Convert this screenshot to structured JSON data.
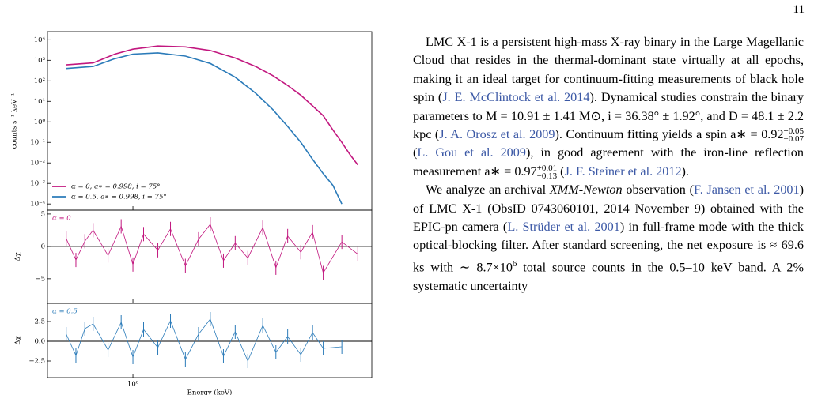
{
  "page_number": "11",
  "figure": {
    "spectrum": {
      "type": "line",
      "ylabel": "counts s⁻¹ keV⁻¹",
      "x": [
        0.55,
        0.7,
        0.85,
        1,
        1.25,
        1.6,
        2,
        2.5,
        3,
        3.5,
        4,
        4.5,
        5,
        5.5,
        6,
        6.5,
        7,
        7.5
      ],
      "series": [
        {
          "name": "α = 0, a∗ = 0.998, i = 75°",
          "color": "#c2177f",
          "values": [
            600,
            750,
            2000,
            3500,
            5000,
            4500,
            3000,
            1300,
            500,
            180,
            60,
            20,
            6,
            2,
            0.4,
            0.1,
            0.025,
            0.008
          ]
        },
        {
          "name": "α = 0.5, a∗ = 0.998, i = 75°",
          "color": "#2b7bb9",
          "values": [
            400,
            500,
            1200,
            2000,
            2300,
            1600,
            700,
            150,
            25,
            4,
            0.6,
            0.1,
            0.015,
            0.003,
            0.0008,
            0.0001,
            null,
            null
          ]
        }
      ],
      "xlim": [
        0.465,
        8.5
      ],
      "ylim": [
        5e-05,
        25000
      ],
      "log_x": true,
      "log_y": true,
      "legend": "lower left",
      "yticks": [
        {
          "value": 10000,
          "label": "10⁴"
        },
        {
          "value": 1000,
          "label": "10³"
        },
        {
          "value": 100,
          "label": "10²"
        },
        {
          "value": 10,
          "label": "10¹"
        },
        {
          "value": 1,
          "label": "10⁰"
        },
        {
          "value": 0.1,
          "label": "10⁻¹"
        },
        {
          "value": 0.01,
          "label": "10⁻²"
        },
        {
          "value": 0.001,
          "label": "10⁻³"
        },
        {
          "value": 0.0001,
          "label": "10⁻⁴"
        }
      ]
    },
    "residual_energies": [
      0.55,
      0.6,
      0.65,
      0.7,
      0.8,
      0.9,
      1,
      1.1,
      1.25,
      1.4,
      1.6,
      1.8,
      2,
      2.25,
      2.5,
      2.8,
      3.2,
      3.6,
      4,
      4.5,
      5,
      5.5,
      6.5,
      7.5
    ],
    "residuals": [
      {
        "type": "line",
        "label": "α = 0",
        "ylabel": "Δχ",
        "color": "#c2177f",
        "values": [
          1.2,
          -2.1,
          0.8,
          2.5,
          -1.4,
          3.1,
          -2.8,
          1.9,
          -0.6,
          2.7,
          -3.0,
          1.1,
          3.4,
          -2.2,
          0.5,
          -1.8,
          2.9,
          -3.3,
          1.6,
          -0.9,
          2.2,
          -4.1,
          0.7,
          -1.2
        ],
        "ylim": [
          -8.8,
          5.6
        ],
        "yticks": [
          5,
          0,
          {
            "value": -5,
            "label": "−5"
          }
        ]
      },
      {
        "type": "line",
        "label": "α = 0.5",
        "ylabel": "Δχ",
        "color": "#2b7bb9",
        "values": [
          0.9,
          -1.8,
          1.6,
          2.2,
          -1.1,
          2.4,
          -2.0,
          1.5,
          -0.8,
          2.6,
          -2.3,
          0.9,
          2.8,
          -1.9,
          1.2,
          -2.5,
          2.0,
          -1.4,
          0.6,
          -1.7,
          1.1,
          -0.9,
          -0.7,
          null
        ],
        "ylim": [
          -4.6,
          4.8
        ],
        "yticks": [
          2.5,
          {
            "value": 0,
            "label": "0.0"
          },
          {
            "value": -2.5,
            "label": "−2.5"
          }
        ]
      }
    ],
    "xlabel": "Energy (keV)",
    "xticks": [
      {
        "value": 1,
        "label": "10⁰"
      }
    ]
  },
  "text": {
    "paragraphs": [
      [
        {
          "text": "LMC X-1 is a persistent high-mass X-ray binary in the Large Magellanic Cloud that resides in the thermal-dominant state virtually at all epochs, making it an ideal target for continuum-fitting measurements of black hole spin ("
        },
        {
          "text": "J. E. McClintock et al. 2014",
          "cite": true
        },
        {
          "text": "). Dynamical studies constrain the binary parameters to M = 10.91 ± 1.41 M⊙, i = 36.38° ± 1.92°, and D = 48.1 ± 2.2 kpc ("
        },
        {
          "text": "J. A. Orosz et al. 2009",
          "cite": true
        },
        {
          "text": "). Continuum fitting yields a spin a∗ = 0.92",
          "sup": "+0.05",
          "sub": "−0.07"
        },
        {
          "text": " ("
        },
        {
          "text": "L. Gou et al. 2009",
          "cite": true
        },
        {
          "text": "), in good agreement with the iron-line reflection measurement a∗ = 0.97",
          "sup": "+0.01",
          "sub": "−0.13"
        },
        {
          "text": " ("
        },
        {
          "text": "J. F. Steiner et al. 2012",
          "cite": true
        },
        {
          "text": ")."
        }
      ],
      [
        {
          "text": "We analyze an archival "
        },
        {
          "text": "XMM-Newton",
          "em": true
        },
        {
          "text": " observation ("
        },
        {
          "text": "F. Jansen et al. 2001",
          "cite": true
        },
        {
          "text": ") of LMC X-1 (ObsID 0743060101, 2014 November 9) obtained with the EPIC-pn camera ("
        },
        {
          "text": "L. Strüder et al. 2001",
          "cite": true
        },
        {
          "text": ") in full-frame mode with the thick optical-blocking filter. After standard screening, the net exposure is ≈ 69.6 ks with ∼ 8.7×10",
          "sup": "6"
        },
        {
          "text": " total source counts in the 0.5–10 keV band. A 2% systematic uncertainty"
        }
      ]
    ]
  }
}
